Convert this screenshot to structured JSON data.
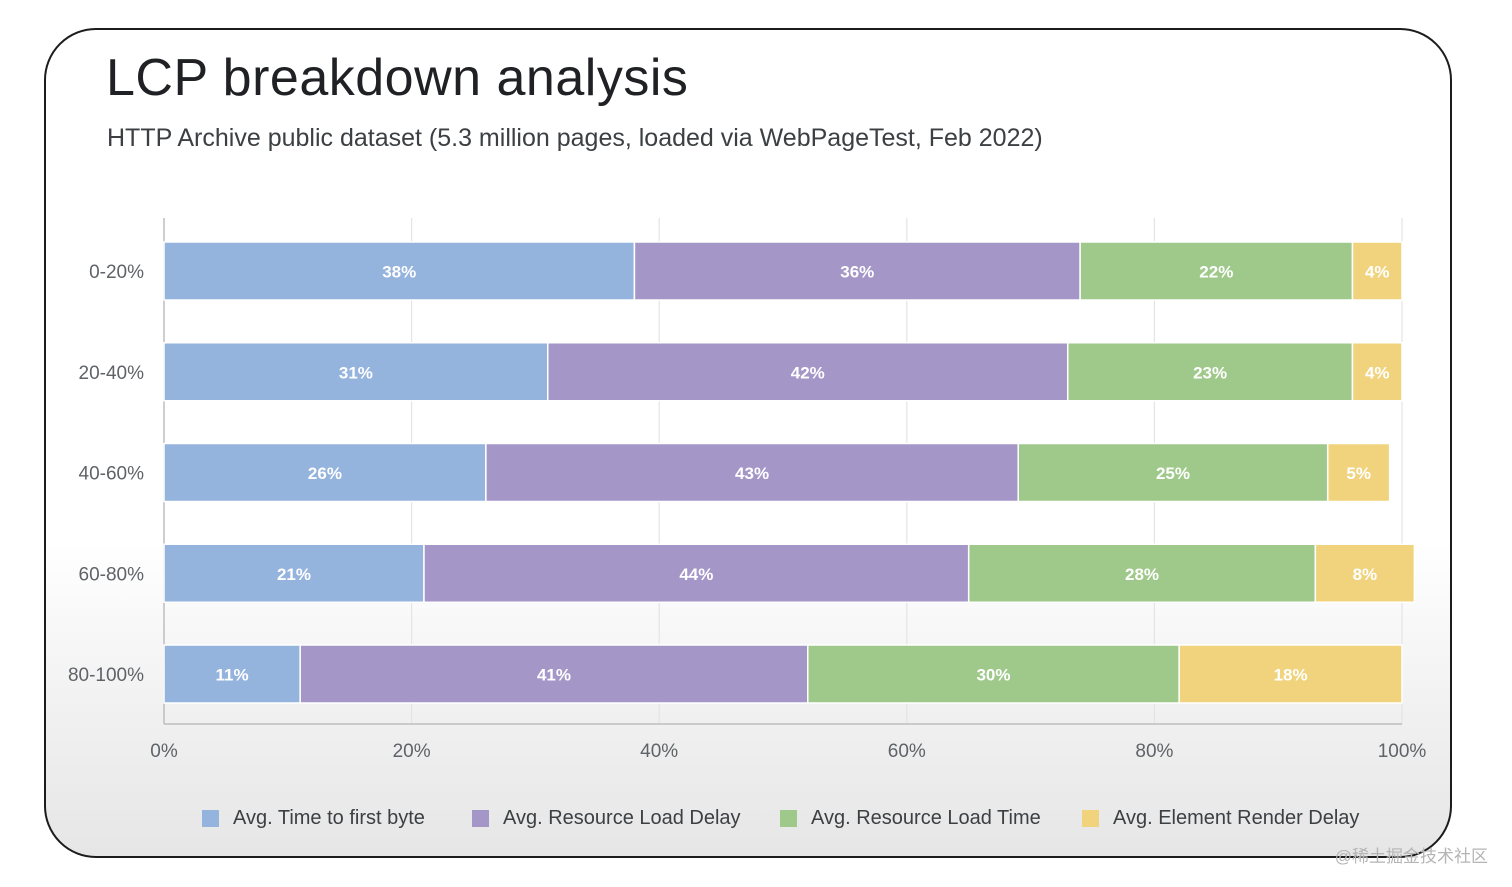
{
  "title": "LCP breakdown analysis",
  "subtitle": "HTTP Archive public dataset (5.3 million pages, loaded via WebPageTest, Feb 2022)",
  "watermark": "@稀土掘金技术社区",
  "colors": {
    "ttfb": "#94b3dd",
    "load_delay": "#a596c8",
    "load_time": "#9fc98a",
    "render_delay": "#f0d37c",
    "grid": "#e4e4e4",
    "axis": "#bdbdbd",
    "tick_text": "#5f6368",
    "bar_label": "#ffffff"
  },
  "chart_data": {
    "type": "bar",
    "orientation": "horizontal",
    "stacked": true,
    "categories": [
      "0-20%",
      "20-40%",
      "40-60%",
      "60-80%",
      "80-100%"
    ],
    "series": [
      {
        "name": "Avg. Time to first byte",
        "key": "ttfb",
        "values": [
          38,
          31,
          26,
          21,
          11
        ]
      },
      {
        "name": "Avg. Resource Load Delay",
        "key": "load_delay",
        "values": [
          36,
          42,
          43,
          44,
          41
        ]
      },
      {
        "name": "Avg. Resource Load Time",
        "key": "load_time",
        "values": [
          22,
          23,
          25,
          28,
          30
        ]
      },
      {
        "name": "Avg. Element Render Delay",
        "key": "render_delay",
        "values": [
          4,
          4,
          5,
          8,
          18
        ]
      }
    ],
    "data_labels": [
      [
        "38%",
        "36%",
        "22%",
        "4%"
      ],
      [
        "31%",
        "42%",
        "23%",
        "4%"
      ],
      [
        "26%",
        "43%",
        "25%",
        "5%"
      ],
      [
        "21%",
        "44%",
        "28%",
        "8%"
      ],
      [
        "11%",
        "41%",
        "30%",
        "18%"
      ]
    ],
    "xlim": [
      0,
      100
    ],
    "xticks": [
      0,
      20,
      40,
      60,
      80,
      100
    ],
    "xtick_labels": [
      "0%",
      "20%",
      "40%",
      "60%",
      "80%",
      "100%"
    ],
    "xlabel": "",
    "ylabel": "",
    "grid": true,
    "legend_position": "bottom"
  }
}
